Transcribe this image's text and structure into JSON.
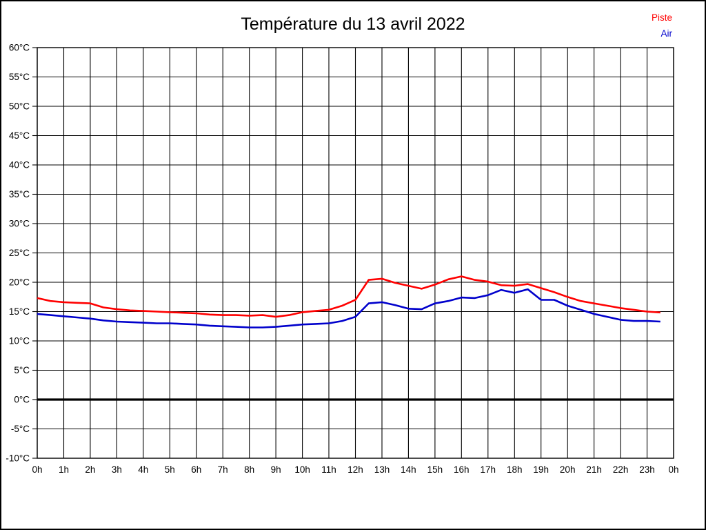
{
  "title": "Température du 13 avril 2022",
  "legend": [
    {
      "label": "Piste",
      "color": "#ff0000"
    },
    {
      "label": "Air",
      "color": "#0000cc"
    }
  ],
  "chart_data": {
    "type": "line",
    "title": "Température du 13 avril 2022",
    "xlabel": "",
    "ylabel": "",
    "xlim": [
      0,
      24
    ],
    "ylim": [
      -10,
      60
    ],
    "grid": true,
    "grid_color": "#000000",
    "zero_line_bold": true,
    "legend_position": "top-right",
    "y_ticks": [
      60,
      55,
      50,
      45,
      40,
      35,
      30,
      25,
      20,
      15,
      10,
      5,
      0,
      -5,
      -10
    ],
    "y_tick_suffix": "°C",
    "x_tick_labels": [
      "0h",
      "1h",
      "2h",
      "3h",
      "4h",
      "5h",
      "6h",
      "7h",
      "8h",
      "9h",
      "10h",
      "11h",
      "12h",
      "13h",
      "14h",
      "15h",
      "16h",
      "17h",
      "18h",
      "19h",
      "20h",
      "21h",
      "22h",
      "23h",
      "0h"
    ],
    "x": [
      0,
      0.5,
      1,
      1.5,
      2,
      2.5,
      3,
      3.5,
      4,
      4.5,
      5,
      5.5,
      6,
      6.5,
      7,
      7.5,
      8,
      8.5,
      9,
      9.5,
      10,
      10.5,
      11,
      11.5,
      12,
      12.5,
      13,
      13.5,
      14,
      14.5,
      15,
      15.5,
      16,
      16.5,
      17,
      17.5,
      18,
      18.5,
      19,
      19.5,
      20,
      20.5,
      21,
      21.5,
      22,
      22.5,
      23,
      23.5
    ],
    "series": [
      {
        "name": "Piste",
        "color": "#ff0000",
        "values": [
          17.3,
          16.8,
          16.6,
          16.5,
          16.4,
          15.7,
          15.4,
          15.2,
          15.1,
          15.0,
          14.9,
          14.8,
          14.7,
          14.5,
          14.4,
          14.4,
          14.3,
          14.4,
          14.1,
          14.4,
          14.9,
          15.1,
          15.3,
          16.0,
          17.0,
          20.4,
          20.6,
          19.9,
          19.4,
          18.9,
          19.6,
          20.5,
          21.0,
          20.4,
          20.1,
          19.5,
          19.4,
          19.7,
          19.0,
          18.3,
          17.5,
          16.8,
          16.4,
          16.0,
          15.6,
          15.3,
          15.0,
          14.85
        ]
      },
      {
        "name": "Air",
        "color": "#0000cc",
        "values": [
          14.6,
          14.4,
          14.2,
          14.0,
          13.8,
          13.5,
          13.3,
          13.2,
          13.1,
          13.0,
          13.0,
          12.9,
          12.8,
          12.6,
          12.5,
          12.4,
          12.3,
          12.3,
          12.4,
          12.6,
          12.8,
          12.9,
          13.0,
          13.4,
          14.1,
          16.4,
          16.6,
          16.1,
          15.5,
          15.4,
          16.4,
          16.8,
          17.4,
          17.3,
          17.8,
          18.7,
          18.2,
          18.8,
          17.0,
          17.0,
          16.0,
          15.3,
          14.6,
          14.1,
          13.6,
          13.4,
          13.4,
          13.3
        ]
      }
    ]
  }
}
